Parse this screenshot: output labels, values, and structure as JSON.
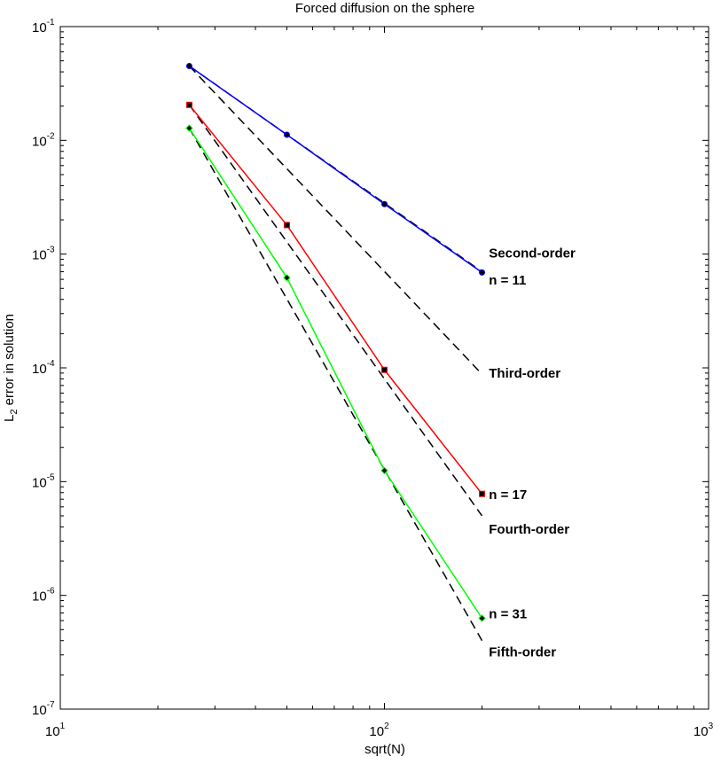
{
  "chart_data": {
    "type": "line",
    "title": "Forced diffusion on the sphere",
    "xlabel": "sqrt(N)",
    "ylabel_prefix": "L",
    "ylabel_sub": "2",
    "ylabel_suffix": " error in solution",
    "x_scale": "log",
    "y_scale": "log",
    "xlim": [
      10,
      1000
    ],
    "ylim": [
      1e-07,
      0.1
    ],
    "grid": false,
    "x_ticks": [
      {
        "value": 10,
        "base": "10",
        "exp": "1"
      },
      {
        "value": 100,
        "base": "10",
        "exp": "2"
      },
      {
        "value": 1000,
        "base": "10",
        "exp": "3"
      }
    ],
    "y_ticks": [
      {
        "value": 1e-07,
        "base": "10",
        "exp": "-7"
      },
      {
        "value": 1e-06,
        "base": "10",
        "exp": "-6"
      },
      {
        "value": 1e-05,
        "base": "10",
        "exp": "-5"
      },
      {
        "value": 0.0001,
        "base": "10",
        "exp": "-4"
      },
      {
        "value": 0.001,
        "base": "10",
        "exp": "-3"
      },
      {
        "value": 0.01,
        "base": "10",
        "exp": "-2"
      },
      {
        "value": 0.1,
        "base": "10",
        "exp": "-1"
      }
    ],
    "series": [
      {
        "label": "n = 11",
        "color": "#0000ff",
        "marker": "circle",
        "x": [
          25,
          50,
          100,
          200
        ],
        "y": [
          0.045,
          0.0112,
          0.00275,
          0.00069
        ]
      },
      {
        "label": "n = 17",
        "color": "#ff0000",
        "marker": "square",
        "x": [
          25,
          50,
          100,
          200
        ],
        "y": [
          0.0205,
          0.0018,
          9.6e-05,
          7.8e-06
        ]
      },
      {
        "label": "n = 31",
        "color": "#00ff00",
        "marker": "diamond",
        "x": [
          25,
          50,
          100,
          200
        ],
        "y": [
          0.0128,
          0.00062,
          1.25e-05,
          6.3e-07
        ]
      }
    ],
    "reference_lines": [
      {
        "label": "Second-order",
        "style": "dashed",
        "color": "#000000",
        "x": [
          25,
          200
        ],
        "y": [
          0.045,
          0.0007
        ]
      },
      {
        "label": "Third-order",
        "style": "dashed",
        "color": "#000000",
        "x": [
          25,
          200
        ],
        "y": [
          0.045,
          8.8e-05
        ]
      },
      {
        "label": "Fourth-order",
        "style": "dashed",
        "color": "#000000",
        "x": [
          25,
          200
        ],
        "y": [
          0.0205,
          5e-06
        ]
      },
      {
        "label": "Fifth-order",
        "style": "dashed",
        "color": "#000000",
        "x": [
          25,
          200
        ],
        "y": [
          0.0128,
          4e-07
        ]
      }
    ],
    "annotations": [
      {
        "text": "Second-order",
        "x": 210,
        "y": 0.00093
      },
      {
        "text": "n = 11",
        "x": 210,
        "y": 0.00054
      },
      {
        "text": "Third-order",
        "x": 210,
        "y": 8.2e-05
      },
      {
        "text": "n = 17",
        "x": 210,
        "y": 7e-06
      },
      {
        "text": "Fourth-order",
        "x": 210,
        "y": 3.5e-06
      },
      {
        "text": "n = 31",
        "x": 210,
        "y": 6.3e-07
      },
      {
        "text": "Fifth-order",
        "x": 210,
        "y": 2.9e-07
      }
    ]
  }
}
